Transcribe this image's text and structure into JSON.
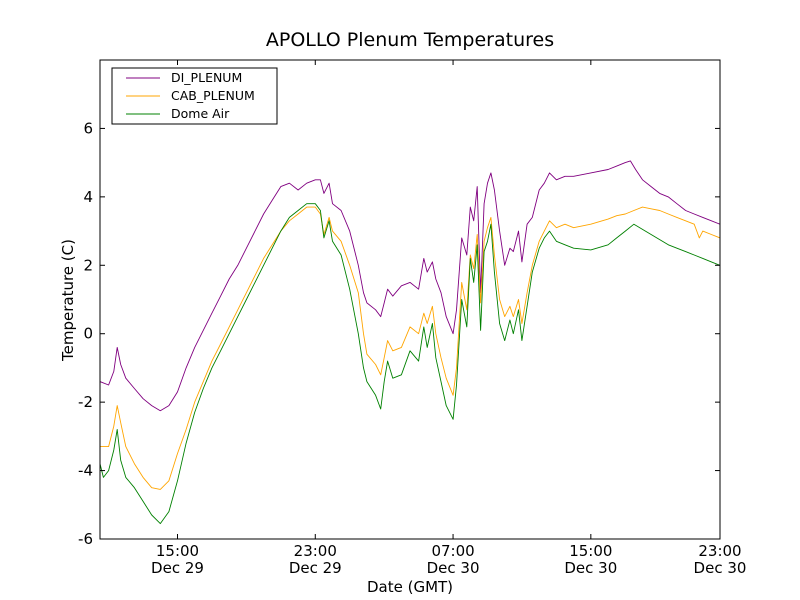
{
  "chart_data": {
    "type": "line",
    "title": "APOLLO Plenum Temperatures",
    "xlabel": "Date (GMT)",
    "ylabel": "Temperature (C)",
    "x_unit": "hours since Dec 29 00:00 GMT",
    "xlim": [
      10.5,
      46.5
    ],
    "ylim": [
      -6,
      8
    ],
    "x_ticks": [
      {
        "value": 15,
        "time": "15:00",
        "date": "Dec 29"
      },
      {
        "value": 23,
        "time": "23:00",
        "date": "Dec 29"
      },
      {
        "value": 31,
        "time": "07:00",
        "date": "Dec 30"
      },
      {
        "value": 39,
        "time": "15:00",
        "date": "Dec 30"
      },
      {
        "value": 47,
        "time": "23:00",
        "date": "Dec 30"
      }
    ],
    "y_ticks": [
      {
        "value": -6,
        "label": "-6"
      },
      {
        "value": -4,
        "label": "-4"
      },
      {
        "value": -2,
        "label": "-2"
      },
      {
        "value": 0,
        "label": "0"
      },
      {
        "value": 2,
        "label": "2"
      },
      {
        "value": 4,
        "label": "4"
      },
      {
        "value": 6,
        "label": "6"
      }
    ],
    "grid": false,
    "legend_position": "top-left",
    "series": [
      {
        "name": "DI_PLENUM",
        "color": "#800080",
        "points": [
          [
            10.5,
            -1.4
          ],
          [
            11.0,
            -1.5
          ],
          [
            11.3,
            -1.1
          ],
          [
            11.5,
            -0.4
          ],
          [
            11.7,
            -0.9
          ],
          [
            12.0,
            -1.3
          ],
          [
            12.5,
            -1.6
          ],
          [
            13.0,
            -1.9
          ],
          [
            13.5,
            -2.1
          ],
          [
            14.0,
            -2.25
          ],
          [
            14.5,
            -2.1
          ],
          [
            15.0,
            -1.7
          ],
          [
            15.5,
            -1.0
          ],
          [
            16.0,
            -0.4
          ],
          [
            16.5,
            0.1
          ],
          [
            17.0,
            0.6
          ],
          [
            17.5,
            1.1
          ],
          [
            18.0,
            1.6
          ],
          [
            18.5,
            2.0
          ],
          [
            19.0,
            2.5
          ],
          [
            19.5,
            3.0
          ],
          [
            20.0,
            3.5
          ],
          [
            20.5,
            3.9
          ],
          [
            21.0,
            4.3
          ],
          [
            21.5,
            4.4
          ],
          [
            22.0,
            4.2
          ],
          [
            22.5,
            4.4
          ],
          [
            23.0,
            4.5
          ],
          [
            23.3,
            4.5
          ],
          [
            23.5,
            4.1
          ],
          [
            23.8,
            4.4
          ],
          [
            24.0,
            3.8
          ],
          [
            24.5,
            3.6
          ],
          [
            25.0,
            3.0
          ],
          [
            25.5,
            2.0
          ],
          [
            25.8,
            1.2
          ],
          [
            26.0,
            0.9
          ],
          [
            26.5,
            0.7
          ],
          [
            26.8,
            0.5
          ],
          [
            27.0,
            0.9
          ],
          [
            27.2,
            1.3
          ],
          [
            27.5,
            1.1
          ],
          [
            28.0,
            1.4
          ],
          [
            28.5,
            1.5
          ],
          [
            29.0,
            1.3
          ],
          [
            29.3,
            2.2
          ],
          [
            29.5,
            1.8
          ],
          [
            29.8,
            2.1
          ],
          [
            30.0,
            1.6
          ],
          [
            30.3,
            1.2
          ],
          [
            30.6,
            0.5
          ],
          [
            31.0,
            0.0
          ],
          [
            31.2,
            0.7
          ],
          [
            31.5,
            2.8
          ],
          [
            31.8,
            2.3
          ],
          [
            32.0,
            3.7
          ],
          [
            32.2,
            3.3
          ],
          [
            32.4,
            4.3
          ],
          [
            32.6,
            1.2
          ],
          [
            32.8,
            3.8
          ],
          [
            33.0,
            4.4
          ],
          [
            33.2,
            4.7
          ],
          [
            33.4,
            4.2
          ],
          [
            33.7,
            3.0
          ],
          [
            34.0,
            2.0
          ],
          [
            34.3,
            2.5
          ],
          [
            34.5,
            2.4
          ],
          [
            34.8,
            3.0
          ],
          [
            35.0,
            2.1
          ],
          [
            35.3,
            3.2
          ],
          [
            35.6,
            3.4
          ],
          [
            36.0,
            4.2
          ],
          [
            36.3,
            4.4
          ],
          [
            36.6,
            4.7
          ],
          [
            37.0,
            4.5
          ],
          [
            37.5,
            4.6
          ],
          [
            38.0,
            4.6
          ],
          [
            39.0,
            4.7
          ],
          [
            40.0,
            4.8
          ],
          [
            40.5,
            4.9
          ],
          [
            41.0,
            5.0
          ],
          [
            41.3,
            5.05
          ],
          [
            41.6,
            4.8
          ],
          [
            42.0,
            4.5
          ],
          [
            42.5,
            4.3
          ],
          [
            43.0,
            4.1
          ],
          [
            43.5,
            4.0
          ],
          [
            44.0,
            3.8
          ],
          [
            44.5,
            3.6
          ],
          [
            45.0,
            3.5
          ],
          [
            45.5,
            3.4
          ],
          [
            46.0,
            3.3
          ],
          [
            46.5,
            3.2
          ]
        ]
      },
      {
        "name": "CAB_PLENUM",
        "color": "#ffa500",
        "points": [
          [
            10.5,
            -3.3
          ],
          [
            11.0,
            -3.3
          ],
          [
            11.3,
            -2.7
          ],
          [
            11.5,
            -2.1
          ],
          [
            11.7,
            -2.6
          ],
          [
            12.0,
            -3.3
          ],
          [
            12.5,
            -3.8
          ],
          [
            13.0,
            -4.2
          ],
          [
            13.5,
            -4.5
          ],
          [
            14.0,
            -4.55
          ],
          [
            14.5,
            -4.3
          ],
          [
            15.0,
            -3.5
          ],
          [
            15.5,
            -2.8
          ],
          [
            16.0,
            -2.0
          ],
          [
            16.5,
            -1.4
          ],
          [
            17.0,
            -0.8
          ],
          [
            17.5,
            -0.3
          ],
          [
            18.0,
            0.2
          ],
          [
            18.5,
            0.7
          ],
          [
            19.0,
            1.2
          ],
          [
            19.5,
            1.7
          ],
          [
            20.0,
            2.2
          ],
          [
            20.5,
            2.6
          ],
          [
            21.0,
            3.0
          ],
          [
            21.5,
            3.3
          ],
          [
            22.0,
            3.5
          ],
          [
            22.5,
            3.7
          ],
          [
            23.0,
            3.7
          ],
          [
            23.3,
            3.5
          ],
          [
            23.5,
            2.9
          ],
          [
            23.8,
            3.4
          ],
          [
            24.0,
            3.0
          ],
          [
            24.5,
            2.7
          ],
          [
            25.0,
            2.0
          ],
          [
            25.5,
            1.2
          ],
          [
            25.8,
            0.0
          ],
          [
            26.0,
            -0.6
          ],
          [
            26.5,
            -0.9
          ],
          [
            26.8,
            -1.2
          ],
          [
            27.0,
            -0.7
          ],
          [
            27.2,
            -0.2
          ],
          [
            27.5,
            -0.5
          ],
          [
            28.0,
            -0.4
          ],
          [
            28.5,
            0.2
          ],
          [
            29.0,
            0.0
          ],
          [
            29.3,
            0.6
          ],
          [
            29.5,
            0.3
          ],
          [
            29.8,
            0.8
          ],
          [
            30.0,
            0.0
          ],
          [
            30.3,
            -0.7
          ],
          [
            30.6,
            -1.3
          ],
          [
            31.0,
            -1.8
          ],
          [
            31.2,
            -1.0
          ],
          [
            31.5,
            1.5
          ],
          [
            31.8,
            0.7
          ],
          [
            32.0,
            2.3
          ],
          [
            32.2,
            1.9
          ],
          [
            32.4,
            2.9
          ],
          [
            32.6,
            0.9
          ],
          [
            32.8,
            2.7
          ],
          [
            33.0,
            3.1
          ],
          [
            33.2,
            3.4
          ],
          [
            33.4,
            2.3
          ],
          [
            33.7,
            1.0
          ],
          [
            34.0,
            0.5
          ],
          [
            34.3,
            0.8
          ],
          [
            34.5,
            0.5
          ],
          [
            34.8,
            1.0
          ],
          [
            35.0,
            0.3
          ],
          [
            35.3,
            1.2
          ],
          [
            35.6,
            2.0
          ],
          [
            36.0,
            2.7
          ],
          [
            36.3,
            3.0
          ],
          [
            36.6,
            3.3
          ],
          [
            37.0,
            3.1
          ],
          [
            37.5,
            3.2
          ],
          [
            38.0,
            3.1
          ],
          [
            39.0,
            3.2
          ],
          [
            40.0,
            3.35
          ],
          [
            40.5,
            3.45
          ],
          [
            41.0,
            3.5
          ],
          [
            41.5,
            3.6
          ],
          [
            42.0,
            3.7
          ],
          [
            42.5,
            3.65
          ],
          [
            43.0,
            3.6
          ],
          [
            43.5,
            3.5
          ],
          [
            44.0,
            3.4
          ],
          [
            44.5,
            3.3
          ],
          [
            45.0,
            3.2
          ],
          [
            45.3,
            2.8
          ],
          [
            45.5,
            3.0
          ],
          [
            46.0,
            2.9
          ],
          [
            46.5,
            2.8
          ]
        ]
      },
      {
        "name": "Dome Air",
        "color": "#008000",
        "points": [
          [
            10.5,
            -3.8
          ],
          [
            10.7,
            -4.2
          ],
          [
            11.0,
            -4.0
          ],
          [
            11.3,
            -3.4
          ],
          [
            11.5,
            -2.8
          ],
          [
            11.7,
            -3.7
          ],
          [
            12.0,
            -4.2
          ],
          [
            12.5,
            -4.5
          ],
          [
            13.0,
            -4.9
          ],
          [
            13.5,
            -5.3
          ],
          [
            14.0,
            -5.55
          ],
          [
            14.5,
            -5.2
          ],
          [
            15.0,
            -4.3
          ],
          [
            15.5,
            -3.2
          ],
          [
            16.0,
            -2.3
          ],
          [
            16.5,
            -1.6
          ],
          [
            17.0,
            -1.0
          ],
          [
            17.5,
            -0.5
          ],
          [
            18.0,
            0.0
          ],
          [
            18.5,
            0.5
          ],
          [
            19.0,
            1.0
          ],
          [
            19.5,
            1.5
          ],
          [
            20.0,
            2.0
          ],
          [
            20.5,
            2.5
          ],
          [
            21.0,
            3.0
          ],
          [
            21.5,
            3.4
          ],
          [
            22.0,
            3.6
          ],
          [
            22.5,
            3.8
          ],
          [
            23.0,
            3.8
          ],
          [
            23.3,
            3.6
          ],
          [
            23.5,
            2.8
          ],
          [
            23.8,
            3.3
          ],
          [
            24.0,
            2.7
          ],
          [
            24.5,
            2.3
          ],
          [
            25.0,
            1.3
          ],
          [
            25.5,
            0.0
          ],
          [
            25.8,
            -1.0
          ],
          [
            26.0,
            -1.4
          ],
          [
            26.5,
            -1.8
          ],
          [
            26.8,
            -2.2
          ],
          [
            27.0,
            -1.4
          ],
          [
            27.2,
            -0.8
          ],
          [
            27.5,
            -1.3
          ],
          [
            28.0,
            -1.2
          ],
          [
            28.5,
            -0.5
          ],
          [
            29.0,
            -0.8
          ],
          [
            29.3,
            0.2
          ],
          [
            29.5,
            -0.4
          ],
          [
            29.8,
            0.3
          ],
          [
            30.0,
            -0.7
          ],
          [
            30.3,
            -1.4
          ],
          [
            30.6,
            -2.1
          ],
          [
            31.0,
            -2.5
          ],
          [
            31.2,
            -1.5
          ],
          [
            31.5,
            1.0
          ],
          [
            31.8,
            0.2
          ],
          [
            32.0,
            2.2
          ],
          [
            32.2,
            1.5
          ],
          [
            32.4,
            2.6
          ],
          [
            32.6,
            0.1
          ],
          [
            32.8,
            2.4
          ],
          [
            33.0,
            2.7
          ],
          [
            33.2,
            3.2
          ],
          [
            33.4,
            1.8
          ],
          [
            33.7,
            0.3
          ],
          [
            34.0,
            -0.2
          ],
          [
            34.3,
            0.4
          ],
          [
            34.5,
            0.0
          ],
          [
            34.8,
            0.7
          ],
          [
            35.0,
            -0.2
          ],
          [
            35.3,
            0.8
          ],
          [
            35.6,
            1.8
          ],
          [
            36.0,
            2.5
          ],
          [
            36.3,
            2.8
          ],
          [
            36.6,
            3.0
          ],
          [
            37.0,
            2.7
          ],
          [
            37.5,
            2.6
          ],
          [
            38.0,
            2.5
          ],
          [
            39.0,
            2.45
          ],
          [
            40.0,
            2.6
          ],
          [
            40.5,
            2.8
          ],
          [
            41.0,
            3.0
          ],
          [
            41.5,
            3.2
          ],
          [
            42.0,
            3.05
          ],
          [
            42.5,
            2.9
          ],
          [
            43.0,
            2.75
          ],
          [
            43.5,
            2.6
          ],
          [
            44.0,
            2.5
          ],
          [
            44.5,
            2.4
          ],
          [
            45.0,
            2.3
          ],
          [
            45.5,
            2.2
          ],
          [
            46.0,
            2.1
          ],
          [
            46.5,
            2.0
          ]
        ]
      }
    ]
  }
}
